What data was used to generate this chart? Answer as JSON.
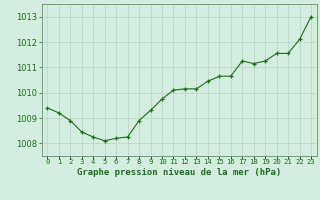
{
  "x": [
    0,
    1,
    2,
    3,
    4,
    5,
    6,
    7,
    8,
    9,
    10,
    11,
    12,
    13,
    14,
    15,
    16,
    17,
    18,
    19,
    20,
    21,
    22,
    23
  ],
  "y": [
    1009.4,
    1009.2,
    1008.9,
    1008.45,
    1008.25,
    1008.1,
    1008.2,
    1008.25,
    1008.9,
    1009.3,
    1009.75,
    1010.1,
    1010.15,
    1010.15,
    1010.45,
    1010.65,
    1010.65,
    1011.25,
    1011.15,
    1011.25,
    1011.55,
    1011.55,
    1012.1,
    1013.0
  ],
  "line_color": "#1a6e1a",
  "marker_color": "#1a6e1a",
  "bg_color": "#d4ede0",
  "grid_color": "#b8d4c0",
  "title": "Graphe pression niveau de la mer (hPa)",
  "title_color": "#1a6e1a",
  "ylim": [
    1007.5,
    1013.5
  ],
  "xlim": [
    -0.5,
    23.5
  ],
  "yticks": [
    1008,
    1009,
    1010,
    1011,
    1012,
    1013
  ],
  "xtick_labels": [
    "0",
    "1",
    "2",
    "3",
    "4",
    "5",
    "6",
    "7",
    "8",
    "9",
    "10",
    "11",
    "12",
    "13",
    "14",
    "15",
    "16",
    "17",
    "18",
    "19",
    "20",
    "21",
    "22",
    "23"
  ],
  "border_color": "#5a9a5a"
}
